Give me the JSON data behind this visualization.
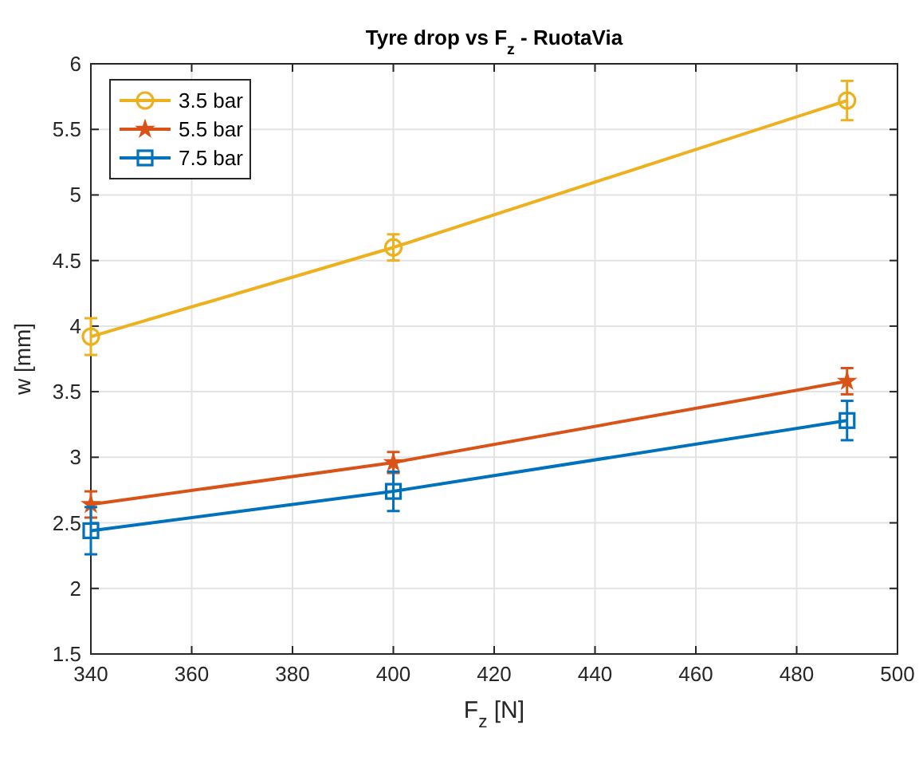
{
  "chart_data": {
    "type": "line",
    "title": "Tyre drop vs F$_{z}$ - RuotaVia",
    "xlabel": "F$_{z}$ [N]",
    "ylabel": "w [mm]",
    "x": [
      340,
      400,
      490
    ],
    "series": [
      {
        "name": "3.5 bar",
        "color": "#edb120",
        "marker": "circle",
        "values": [
          3.92,
          4.6,
          5.72
        ],
        "errors": [
          0.14,
          0.1,
          0.15
        ]
      },
      {
        "name": "5.5 bar",
        "color": "#d95319",
        "marker": "star",
        "values": [
          2.64,
          2.96,
          3.58
        ],
        "errors": [
          0.1,
          0.08,
          0.1
        ]
      },
      {
        "name": "7.5 bar",
        "color": "#0072bd",
        "marker": "square",
        "values": [
          2.44,
          2.74,
          3.28
        ],
        "errors": [
          0.18,
          0.15,
          0.15
        ]
      }
    ],
    "xlim": [
      340,
      500
    ],
    "xticks": [
      340,
      360,
      380,
      400,
      420,
      440,
      460,
      480,
      500
    ],
    "ylim": [
      1.5,
      6
    ],
    "yticks": [
      1.5,
      2,
      2.5,
      3,
      3.5,
      4,
      4.5,
      5,
      5.5,
      6
    ],
    "grid": true,
    "legend": "top left",
    "line_style": "solid"
  }
}
